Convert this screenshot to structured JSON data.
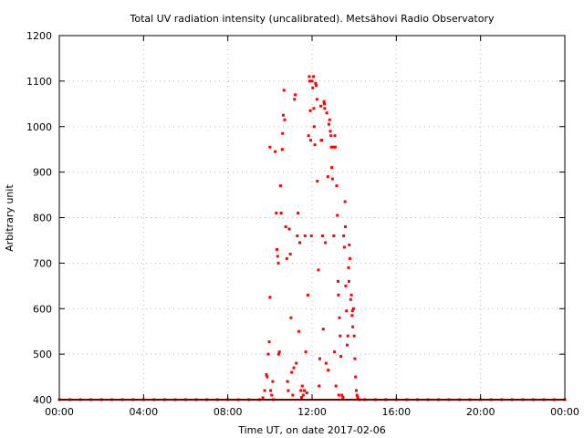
{
  "chart_data": {
    "type": "scatter",
    "title": "Total UV radiation intensity (uncalibrated). Metsähovi Radio Observatory",
    "xlabel": "Time UT, on date 2017-02-06",
    "ylabel": "Arbitrary unit",
    "xlim": [
      "00:00",
      "24:00"
    ],
    "ylim": [
      400,
      1200
    ],
    "xticks": [
      "00:00",
      "04:00",
      "08:00",
      "12:00",
      "16:00",
      "20:00",
      "00:00"
    ],
    "yticks": [
      "400",
      "500",
      "600",
      "700",
      "800",
      "900",
      "1000",
      "1100",
      "1200"
    ],
    "grid": true,
    "legend": "none",
    "color": "#ff0000",
    "points": [
      [
        "00:00",
        400
      ],
      [
        "00:30",
        400
      ],
      [
        "01:00",
        400
      ],
      [
        "01:30",
        400
      ],
      [
        "02:00",
        400
      ],
      [
        "02:30",
        400
      ],
      [
        "03:00",
        400
      ],
      [
        "03:30",
        400
      ],
      [
        "04:00",
        400
      ],
      [
        "04:30",
        400
      ],
      [
        "05:00",
        400
      ],
      [
        "05:30",
        400
      ],
      [
        "06:00",
        400
      ],
      [
        "06:30",
        400
      ],
      [
        "07:00",
        400
      ],
      [
        "07:30",
        400
      ],
      [
        "08:00",
        400
      ],
      [
        "08:30",
        400
      ],
      [
        "09:00",
        400
      ],
      [
        "09:30",
        400
      ],
      [
        "09:40",
        404
      ],
      [
        "09:45",
        420
      ],
      [
        "09:50",
        455
      ],
      [
        "09:52",
        450
      ],
      [
        "09:55",
        500
      ],
      [
        "09:58",
        527
      ],
      [
        "10:00",
        625
      ],
      [
        "10:00",
        955
      ],
      [
        "10:02",
        420
      ],
      [
        "10:05",
        410
      ],
      [
        "10:08",
        440
      ],
      [
        "10:10",
        400
      ],
      [
        "10:15",
        945
      ],
      [
        "10:18",
        810
      ],
      [
        "10:20",
        730
      ],
      [
        "10:22",
        715
      ],
      [
        "10:24",
        700
      ],
      [
        "10:25",
        500
      ],
      [
        "10:27",
        505
      ],
      [
        "10:30",
        870
      ],
      [
        "10:32",
        810
      ],
      [
        "10:35",
        950
      ],
      [
        "10:36",
        985
      ],
      [
        "10:38",
        1025
      ],
      [
        "10:40",
        1080
      ],
      [
        "10:42",
        1015
      ],
      [
        "10:45",
        780
      ],
      [
        "10:48",
        710
      ],
      [
        "10:50",
        440
      ],
      [
        "10:52",
        420
      ],
      [
        "10:55",
        775
      ],
      [
        "10:58",
        720
      ],
      [
        "11:00",
        580
      ],
      [
        "11:02",
        460
      ],
      [
        "11:05",
        410
      ],
      [
        "11:08",
        470
      ],
      [
        "11:10",
        1060
      ],
      [
        "11:12",
        1070
      ],
      [
        "11:15",
        480
      ],
      [
        "11:18",
        760
      ],
      [
        "11:20",
        810
      ],
      [
        "11:22",
        550
      ],
      [
        "11:25",
        745
      ],
      [
        "11:28",
        420
      ],
      [
        "11:30",
        405
      ],
      [
        "11:32",
        430
      ],
      [
        "11:35",
        410
      ],
      [
        "11:38",
        420
      ],
      [
        "11:40",
        760
      ],
      [
        "11:42",
        505
      ],
      [
        "11:45",
        415
      ],
      [
        "11:48",
        630
      ],
      [
        "11:50",
        980
      ],
      [
        "11:52",
        1110
      ],
      [
        "11:53",
        1100
      ],
      [
        "11:55",
        1035
      ],
      [
        "11:56",
        970
      ],
      [
        "11:58",
        760
      ],
      [
        "12:00",
        1100
      ],
      [
        "12:02",
        1085
      ],
      [
        "12:04",
        1110
      ],
      [
        "12:05",
        1040
      ],
      [
        "12:06",
        1000
      ],
      [
        "12:08",
        960
      ],
      [
        "12:10",
        1095
      ],
      [
        "12:12",
        1090
      ],
      [
        "12:14",
        1060
      ],
      [
        "12:15",
        880
      ],
      [
        "12:18",
        685
      ],
      [
        "12:20",
        430
      ],
      [
        "12:22",
        490
      ],
      [
        "12:25",
        1045
      ],
      [
        "12:26",
        970
      ],
      [
        "12:28",
        970
      ],
      [
        "12:30",
        760
      ],
      [
        "12:32",
        555
      ],
      [
        "12:34",
        1055
      ],
      [
        "12:35",
        1050
      ],
      [
        "12:36",
        1040
      ],
      [
        "12:38",
        745
      ],
      [
        "12:40",
        480
      ],
      [
        "12:42",
        1030
      ],
      [
        "12:45",
        890
      ],
      [
        "12:46",
        465
      ],
      [
        "12:48",
        1005
      ],
      [
        "12:50",
        1015
      ],
      [
        "12:52",
        990
      ],
      [
        "12:54",
        980
      ],
      [
        "12:55",
        955
      ],
      [
        "12:56",
        910
      ],
      [
        "12:58",
        885
      ],
      [
        "13:00",
        955
      ],
      [
        "13:02",
        760
      ],
      [
        "13:04",
        505
      ],
      [
        "13:05",
        980
      ],
      [
        "13:06",
        955
      ],
      [
        "13:08",
        430
      ],
      [
        "13:10",
        870
      ],
      [
        "13:12",
        805
      ],
      [
        "13:14",
        660
      ],
      [
        "13:15",
        630
      ],
      [
        "13:16",
        410
      ],
      [
        "13:18",
        580
      ],
      [
        "13:20",
        540
      ],
      [
        "13:22",
        495
      ],
      [
        "13:25",
        410
      ],
      [
        "13:28",
        405
      ],
      [
        "13:30",
        760
      ],
      [
        "13:32",
        735
      ],
      [
        "13:34",
        835
      ],
      [
        "13:35",
        780
      ],
      [
        "13:36",
        650
      ],
      [
        "13:38",
        595
      ],
      [
        "13:40",
        520
      ],
      [
        "13:42",
        540
      ],
      [
        "13:44",
        690
      ],
      [
        "13:45",
        660
      ],
      [
        "13:46",
        740
      ],
      [
        "13:48",
        710
      ],
      [
        "13:50",
        620
      ],
      [
        "13:52",
        630
      ],
      [
        "13:54",
        585
      ],
      [
        "13:55",
        595
      ],
      [
        "13:56",
        560
      ],
      [
        "13:58",
        600
      ],
      [
        "14:00",
        540
      ],
      [
        "14:02",
        490
      ],
      [
        "14:04",
        450
      ],
      [
        "14:06",
        420
      ],
      [
        "14:08",
        410
      ],
      [
        "14:10",
        405
      ],
      [
        "14:15",
        400
      ],
      [
        "14:30",
        400
      ],
      [
        "15:00",
        400
      ],
      [
        "15:30",
        400
      ],
      [
        "16:00",
        400
      ],
      [
        "16:30",
        400
      ],
      [
        "17:00",
        400
      ],
      [
        "17:30",
        400
      ],
      [
        "18:00",
        400
      ],
      [
        "18:30",
        400
      ],
      [
        "19:00",
        400
      ],
      [
        "19:30",
        400
      ],
      [
        "20:00",
        400
      ],
      [
        "20:30",
        400
      ],
      [
        "21:00",
        400
      ],
      [
        "21:30",
        400
      ],
      [
        "22:00",
        400
      ],
      [
        "22:30",
        400
      ],
      [
        "23:00",
        400
      ],
      [
        "23:30",
        400
      ],
      [
        "24:00",
        400
      ]
    ]
  }
}
